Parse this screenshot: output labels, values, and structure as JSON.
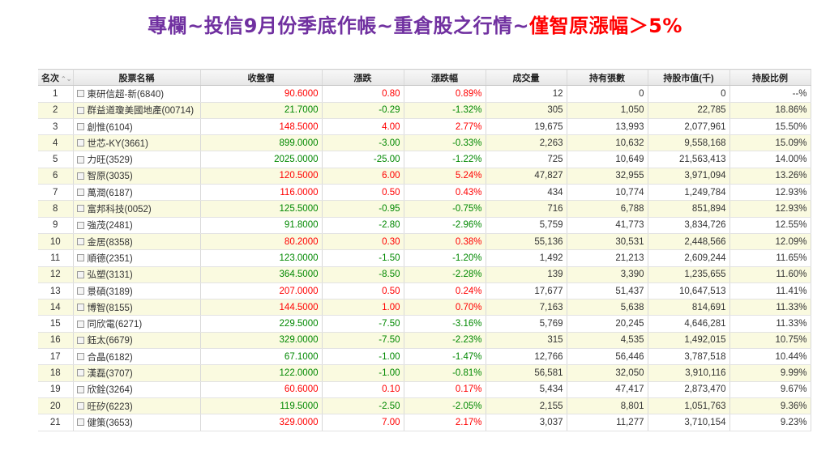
{
  "title": {
    "main": "專欄~投信9月份季底作帳~重倉股之行情~",
    "highlight": "僅智原漲幅＞5%"
  },
  "table": {
    "headers": [
      "名次",
      "股票名稱",
      "收盤價",
      "漲跌",
      "漲跌幅",
      "成交量",
      "持有張數",
      "持股市值(千)",
      "持股比例"
    ],
    "sort_arrows": "⌃⌄",
    "rows": [
      {
        "rank": "1",
        "name": "東研信超-新(6840)",
        "close": "90.6000",
        "change": "0.80",
        "pct": "0.89%",
        "volume": "12",
        "shares": "0",
        "value": "0",
        "ratio": "--%",
        "dir": "up"
      },
      {
        "rank": "2",
        "name": "群益道瓊美國地產(00714)",
        "close": "21.7000",
        "change": "-0.29",
        "pct": "-1.32%",
        "volume": "305",
        "shares": "1,050",
        "value": "22,785",
        "ratio": "18.86%",
        "dir": "down"
      },
      {
        "rank": "3",
        "name": "創惟(6104)",
        "close": "148.5000",
        "change": "4.00",
        "pct": "2.77%",
        "volume": "19,675",
        "shares": "13,993",
        "value": "2,077,961",
        "ratio": "15.50%",
        "dir": "up"
      },
      {
        "rank": "4",
        "name": "世芯-KY(3661)",
        "close": "899.0000",
        "change": "-3.00",
        "pct": "-0.33%",
        "volume": "2,263",
        "shares": "10,632",
        "value": "9,558,168",
        "ratio": "15.09%",
        "dir": "down"
      },
      {
        "rank": "5",
        "name": "力旺(3529)",
        "close": "2025.0000",
        "change": "-25.00",
        "pct": "-1.22%",
        "volume": "725",
        "shares": "10,649",
        "value": "21,563,413",
        "ratio": "14.00%",
        "dir": "down"
      },
      {
        "rank": "6",
        "name": "智原(3035)",
        "close": "120.5000",
        "change": "6.00",
        "pct": "5.24%",
        "volume": "47,827",
        "shares": "32,955",
        "value": "3,971,094",
        "ratio": "13.26%",
        "dir": "up"
      },
      {
        "rank": "7",
        "name": "萬潤(6187)",
        "close": "116.0000",
        "change": "0.50",
        "pct": "0.43%",
        "volume": "434",
        "shares": "10,774",
        "value": "1,249,784",
        "ratio": "12.93%",
        "dir": "up"
      },
      {
        "rank": "8",
        "name": "富邦科技(0052)",
        "close": "125.5000",
        "change": "-0.95",
        "pct": "-0.75%",
        "volume": "716",
        "shares": "6,788",
        "value": "851,894",
        "ratio": "12.93%",
        "dir": "down"
      },
      {
        "rank": "9",
        "name": "強茂(2481)",
        "close": "91.8000",
        "change": "-2.80",
        "pct": "-2.96%",
        "volume": "5,759",
        "shares": "41,773",
        "value": "3,834,726",
        "ratio": "12.55%",
        "dir": "down"
      },
      {
        "rank": "10",
        "name": "金居(8358)",
        "close": "80.2000",
        "change": "0.30",
        "pct": "0.38%",
        "volume": "55,136",
        "shares": "30,531",
        "value": "2,448,566",
        "ratio": "12.09%",
        "dir": "up"
      },
      {
        "rank": "11",
        "name": "順德(2351)",
        "close": "123.0000",
        "change": "-1.50",
        "pct": "-1.20%",
        "volume": "1,492",
        "shares": "21,213",
        "value": "2,609,244",
        "ratio": "11.65%",
        "dir": "down"
      },
      {
        "rank": "12",
        "name": "弘塑(3131)",
        "close": "364.5000",
        "change": "-8.50",
        "pct": "-2.28%",
        "volume": "139",
        "shares": "3,390",
        "value": "1,235,655",
        "ratio": "11.60%",
        "dir": "down"
      },
      {
        "rank": "13",
        "name": "景碩(3189)",
        "close": "207.0000",
        "change": "0.50",
        "pct": "0.24%",
        "volume": "17,677",
        "shares": "51,437",
        "value": "10,647,513",
        "ratio": "11.41%",
        "dir": "up"
      },
      {
        "rank": "14",
        "name": "博智(8155)",
        "close": "144.5000",
        "change": "1.00",
        "pct": "0.70%",
        "volume": "7,163",
        "shares": "5,638",
        "value": "814,691",
        "ratio": "11.33%",
        "dir": "up"
      },
      {
        "rank": "15",
        "name": "同欣電(6271)",
        "close": "229.5000",
        "change": "-7.50",
        "pct": "-3.16%",
        "volume": "5,769",
        "shares": "20,245",
        "value": "4,646,281",
        "ratio": "11.33%",
        "dir": "down"
      },
      {
        "rank": "16",
        "name": "鈺太(6679)",
        "close": "329.0000",
        "change": "-7.50",
        "pct": "-2.23%",
        "volume": "315",
        "shares": "4,535",
        "value": "1,492,015",
        "ratio": "10.75%",
        "dir": "down"
      },
      {
        "rank": "17",
        "name": "合晶(6182)",
        "close": "67.1000",
        "change": "-1.00",
        "pct": "-1.47%",
        "volume": "12,766",
        "shares": "56,446",
        "value": "3,787,518",
        "ratio": "10.44%",
        "dir": "down"
      },
      {
        "rank": "18",
        "name": "漢磊(3707)",
        "close": "122.0000",
        "change": "-1.00",
        "pct": "-0.81%",
        "volume": "56,581",
        "shares": "32,050",
        "value": "3,910,116",
        "ratio": "9.99%",
        "dir": "down"
      },
      {
        "rank": "19",
        "name": "欣銓(3264)",
        "close": "60.6000",
        "change": "0.10",
        "pct": "0.17%",
        "volume": "5,434",
        "shares": "47,417",
        "value": "2,873,470",
        "ratio": "9.67%",
        "dir": "up"
      },
      {
        "rank": "20",
        "name": "旺矽(6223)",
        "close": "119.5000",
        "change": "-2.50",
        "pct": "-2.05%",
        "volume": "2,155",
        "shares": "8,801",
        "value": "1,051,763",
        "ratio": "9.36%",
        "dir": "down"
      },
      {
        "rank": "21",
        "name": "健策(3653)",
        "close": "329.0000",
        "change": "7.00",
        "pct": "2.17%",
        "volume": "3,037",
        "shares": "11,277",
        "value": "3,710,154",
        "ratio": "9.23%",
        "dir": "up"
      }
    ]
  }
}
